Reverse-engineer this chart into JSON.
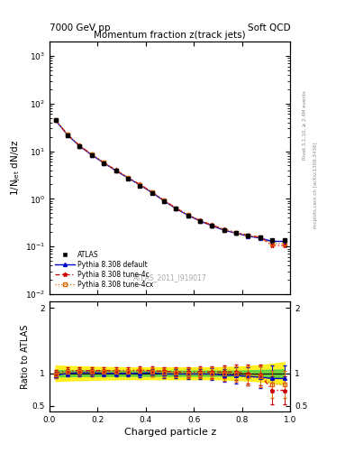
{
  "title": "Momentum fraction z(track jets)",
  "top_left_label": "7000 GeV pp",
  "top_right_label": "Soft QCD",
  "watermark": "ATLAS_2011_I919017",
  "right_label1": "Rivet 3.1.10, ≥ 2.4M events",
  "right_label2": "mcplots.cern.ch [arXiv:1306.3436]",
  "ylabel_main": "1/N$_{\\mathrm{jet}}$ dN/dz",
  "ylabel_ratio": "Ratio to ATLAS",
  "xlabel": "Charged particle z",
  "xlim": [
    0.0,
    1.0
  ],
  "ylim_main": [
    0.01,
    2000
  ],
  "ylim_ratio": [
    0.42,
    2.1
  ],
  "z_values": [
    0.025,
    0.075,
    0.125,
    0.175,
    0.225,
    0.275,
    0.325,
    0.375,
    0.425,
    0.475,
    0.525,
    0.575,
    0.625,
    0.675,
    0.725,
    0.775,
    0.825,
    0.875,
    0.925,
    0.975
  ],
  "atlas_y": [
    45.0,
    21.5,
    12.5,
    8.2,
    5.6,
    3.85,
    2.7,
    1.9,
    1.32,
    0.9,
    0.62,
    0.45,
    0.34,
    0.27,
    0.22,
    0.19,
    0.17,
    0.155,
    0.135,
    0.135
  ],
  "atlas_yerr": [
    1.8,
    0.9,
    0.5,
    0.35,
    0.24,
    0.16,
    0.11,
    0.08,
    0.06,
    0.04,
    0.03,
    0.022,
    0.018,
    0.014,
    0.012,
    0.011,
    0.01,
    0.009,
    0.008,
    0.008
  ],
  "pythia_default_y": [
    44.5,
    21.8,
    12.8,
    8.35,
    5.68,
    3.92,
    2.76,
    1.96,
    1.36,
    0.91,
    0.623,
    0.453,
    0.342,
    0.272,
    0.22,
    0.19,
    0.165,
    0.15,
    0.128,
    0.128
  ],
  "pythia_4c_y": [
    45.2,
    22.3,
    13.1,
    8.55,
    5.82,
    4.02,
    2.83,
    2.01,
    1.395,
    0.935,
    0.64,
    0.466,
    0.353,
    0.281,
    0.229,
    0.198,
    0.172,
    0.157,
    0.105,
    0.105
  ],
  "pythia_4cx_y": [
    44.8,
    22.0,
    12.95,
    8.44,
    5.75,
    3.97,
    2.795,
    1.985,
    1.378,
    0.922,
    0.631,
    0.459,
    0.347,
    0.276,
    0.224,
    0.193,
    0.168,
    0.153,
    0.115,
    0.115
  ],
  "ratio_default": [
    0.97,
    1.0,
    1.01,
    1.01,
    1.0,
    1.0,
    1.0,
    1.0,
    1.01,
    0.99,
    0.99,
    0.99,
    0.99,
    0.99,
    0.97,
    0.97,
    0.95,
    0.94,
    0.92,
    0.92
  ],
  "ratio_4c": [
    1.0,
    1.04,
    1.04,
    1.04,
    1.04,
    1.04,
    1.04,
    1.05,
    1.04,
    1.03,
    1.02,
    1.02,
    1.02,
    1.02,
    1.02,
    1.02,
    0.99,
    0.98,
    0.74,
    0.74
  ],
  "ratio_4cx": [
    0.98,
    1.02,
    1.02,
    1.02,
    1.02,
    1.02,
    1.02,
    1.03,
    1.02,
    1.01,
    1.01,
    1.0,
    1.0,
    1.0,
    0.99,
    0.99,
    0.96,
    0.95,
    0.83,
    0.83
  ],
  "ratio_default_err": [
    0.05,
    0.05,
    0.05,
    0.05,
    0.05,
    0.05,
    0.05,
    0.055,
    0.06,
    0.065,
    0.07,
    0.075,
    0.08,
    0.09,
    0.1,
    0.12,
    0.14,
    0.16,
    0.2,
    0.2
  ],
  "ratio_4c_err": [
    0.05,
    0.05,
    0.05,
    0.05,
    0.05,
    0.05,
    0.05,
    0.055,
    0.06,
    0.065,
    0.07,
    0.075,
    0.08,
    0.09,
    0.1,
    0.12,
    0.14,
    0.16,
    0.22,
    0.22
  ],
  "ratio_4cx_err": [
    0.05,
    0.05,
    0.05,
    0.05,
    0.05,
    0.05,
    0.05,
    0.055,
    0.06,
    0.065,
    0.07,
    0.075,
    0.08,
    0.09,
    0.1,
    0.12,
    0.14,
    0.16,
    0.21,
    0.21
  ],
  "green_band_lo": [
    0.95,
    0.955,
    0.957,
    0.958,
    0.959,
    0.959,
    0.96,
    0.96,
    0.96,
    0.96,
    0.96,
    0.96,
    0.96,
    0.96,
    0.96,
    0.96,
    0.955,
    0.95,
    0.945,
    0.94
  ],
  "green_band_hi": [
    1.05,
    1.045,
    1.043,
    1.042,
    1.041,
    1.041,
    1.04,
    1.04,
    1.04,
    1.04,
    1.04,
    1.04,
    1.04,
    1.04,
    1.04,
    1.04,
    1.045,
    1.05,
    1.055,
    1.06
  ],
  "yellow_band_lo": [
    0.88,
    0.89,
    0.895,
    0.9,
    0.905,
    0.908,
    0.91,
    0.91,
    0.91,
    0.91,
    0.91,
    0.91,
    0.91,
    0.91,
    0.905,
    0.9,
    0.89,
    0.875,
    0.855,
    0.83
  ],
  "yellow_band_hi": [
    1.12,
    1.11,
    1.105,
    1.1,
    1.095,
    1.092,
    1.09,
    1.09,
    1.09,
    1.09,
    1.09,
    1.09,
    1.09,
    1.09,
    1.095,
    1.1,
    1.11,
    1.125,
    1.145,
    1.17
  ],
  "color_atlas": "#000000",
  "color_default": "#0000cc",
  "color_4c": "#cc0000",
  "color_4cx": "#dd6600",
  "legend_labels": [
    "ATLAS",
    "Pythia 8.308 default",
    "Pythia 8.308 tune-4c",
    "Pythia 8.308 tune-4cx"
  ]
}
